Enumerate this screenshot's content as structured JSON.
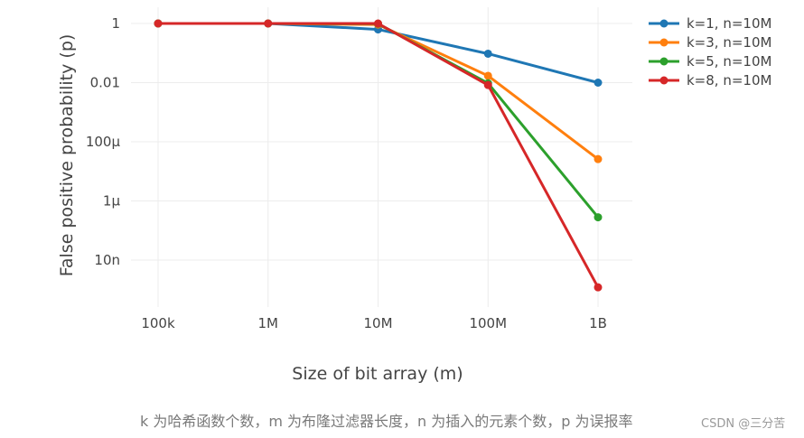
{
  "chart_data": {
    "type": "line",
    "title": "",
    "xlabel": "Size of bit array (m)",
    "ylabel": "False positive probability (p)",
    "y_scale": "log",
    "categories": [
      "100k",
      "1M",
      "10M",
      "100M",
      "1B"
    ],
    "y_ticks": [
      {
        "label": "1",
        "value": 1
      },
      {
        "label": "0.01",
        "value": 0.01
      },
      {
        "label": "100μ",
        "value": 0.0001
      },
      {
        "label": "1μ",
        "value": 1e-06
      },
      {
        "label": "10n",
        "value": 1e-08
      }
    ],
    "ylim": [
      5e-10,
      2
    ],
    "grid": true,
    "legend_position": "top-right",
    "series": [
      {
        "name": "k=1, n=10M",
        "color": "#1f77b4",
        "values": [
          1,
          1,
          0.63,
          0.095,
          0.01
        ]
      },
      {
        "name": "k=3, n=10M",
        "color": "#ff7f0e",
        "values": [
          1,
          1,
          0.92,
          0.017,
          2.6e-05
        ]
      },
      {
        "name": "k=5, n=10M",
        "color": "#2ca02c",
        "values": [
          1,
          1,
          0.98,
          0.0095,
          2.8e-07
        ]
      },
      {
        "name": "k=8, n=10M",
        "color": "#d62728",
        "values": [
          1,
          1,
          1,
          0.0083,
          1.2e-09
        ]
      }
    ]
  },
  "caption": "k 为哈希函数个数，m 为布隆过滤器长度，n 为插入的元素个数，p 为误报率",
  "watermark": "CSDN @三分苦"
}
